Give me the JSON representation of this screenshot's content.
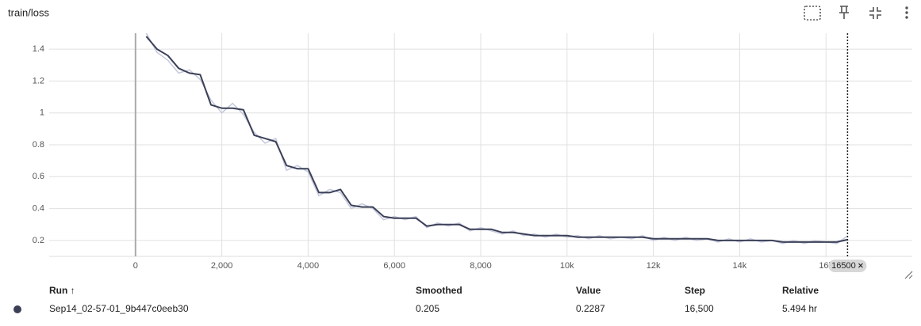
{
  "chart_data": {
    "type": "line",
    "title": "train/loss",
    "x": [
      250,
      500,
      750,
      1000,
      1250,
      1500,
      1750,
      2000,
      2250,
      2500,
      2750,
      3000,
      3250,
      3500,
      3750,
      4000,
      4250,
      4500,
      4750,
      5000,
      5250,
      5500,
      5750,
      6000,
      6250,
      6500,
      6750,
      7000,
      7250,
      7500,
      7750,
      8000,
      8250,
      8500,
      8750,
      9000,
      9250,
      9500,
      9750,
      10000,
      10250,
      10500,
      10750,
      11000,
      11250,
      11500,
      11750,
      12000,
      12250,
      12500,
      12750,
      13000,
      13250,
      13500,
      13750,
      14000,
      14250,
      14500,
      14750,
      15000,
      15250,
      15500,
      15750,
      16000,
      16250,
      16500
    ],
    "series": [
      {
        "color": "#c5c8dc",
        "values": [
          1.5,
          1.38,
          1.33,
          1.25,
          1.27,
          1.21,
          1.08,
          1.0,
          1.06,
          0.99,
          0.88,
          0.81,
          0.84,
          0.64,
          0.67,
          0.63,
          0.48,
          0.52,
          0.5,
          0.4,
          0.43,
          0.4,
          0.33,
          0.35,
          0.33,
          0.35,
          0.28,
          0.31,
          0.29,
          0.31,
          0.26,
          0.28,
          0.26,
          0.24,
          0.26,
          0.23,
          0.24,
          0.22,
          0.24,
          0.22,
          0.23,
          0.21,
          0.23,
          0.21,
          0.22,
          0.21,
          0.23,
          0.2,
          0.22,
          0.2,
          0.22,
          0.2,
          0.21,
          0.19,
          0.21,
          0.19,
          0.21,
          0.19,
          0.2,
          0.18,
          0.2,
          0.18,
          0.2,
          0.19,
          0.18,
          0.2287
        ]
      },
      {
        "color": "#3b4058",
        "values": [
          1.48,
          1.4,
          1.36,
          1.28,
          1.25,
          1.24,
          1.05,
          1.03,
          1.03,
          1.02,
          0.86,
          0.84,
          0.82,
          0.67,
          0.65,
          0.65,
          0.5,
          0.5,
          0.52,
          0.42,
          0.41,
          0.41,
          0.35,
          0.34,
          0.34,
          0.34,
          0.29,
          0.3,
          0.3,
          0.3,
          0.27,
          0.27,
          0.27,
          0.25,
          0.25,
          0.24,
          0.23,
          0.23,
          0.23,
          0.23,
          0.22,
          0.22,
          0.22,
          0.22,
          0.22,
          0.22,
          0.22,
          0.21,
          0.21,
          0.21,
          0.21,
          0.21,
          0.21,
          0.2,
          0.2,
          0.2,
          0.2,
          0.2,
          0.2,
          0.19,
          0.19,
          0.19,
          0.19,
          0.19,
          0.19,
          0.205
        ]
      }
    ],
    "xlim": [
      -2000,
      18000
    ],
    "xticks": [
      0,
      {
        "value": 2000,
        "label": "2,000"
      },
      {
        "value": 4000,
        "label": "4,000"
      },
      {
        "value": 6000,
        "label": "6,000"
      },
      {
        "value": 8000,
        "label": "8,000"
      },
      {
        "value": 10000,
        "label": "10k"
      },
      {
        "value": 12000,
        "label": "12k"
      },
      {
        "value": 14000,
        "label": "14k"
      },
      {
        "value": 16000,
        "label": "16k"
      }
    ],
    "ylim": [
      0.1,
      1.5
    ],
    "yticks": [
      0.2,
      0.4,
      0.6,
      0.8,
      1,
      1.2,
      1.4
    ],
    "grid": true,
    "cursor_step": 16500
  },
  "table": {
    "columns": [
      "Run ↑",
      "Smoothed",
      "Value",
      "Step",
      "Relative"
    ],
    "rows": [
      [
        "Sep14_02-57-01_9b447c0eeb30",
        "0.205",
        "0.2287",
        "16,500",
        "5.494 hr"
      ]
    ]
  }
}
